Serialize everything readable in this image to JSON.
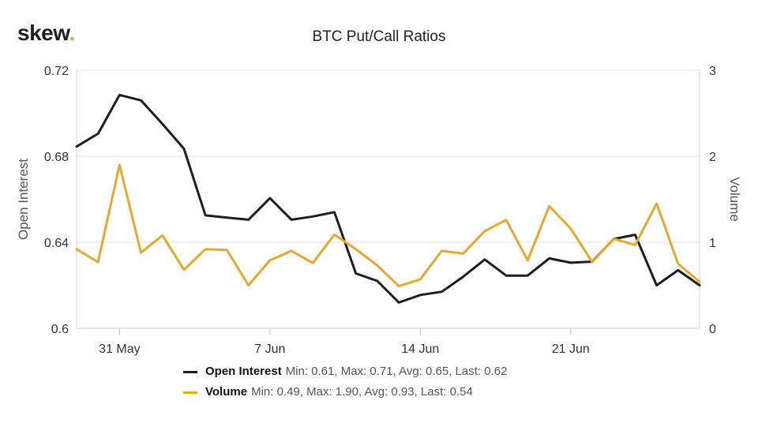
{
  "brand": {
    "name": "skew",
    "dot": "."
  },
  "chart_data": {
    "type": "line",
    "title": "BTC Put/Call Ratios",
    "x_ticks": [
      {
        "label": "31 May",
        "index": 2
      },
      {
        "label": "7 Jun",
        "index": 9
      },
      {
        "label": "14 Jun",
        "index": 16
      },
      {
        "label": "21 Jun",
        "index": 23
      }
    ],
    "y_left": {
      "label": "Open Interest",
      "range": [
        0.6,
        0.72
      ],
      "ticks": [
        "0.6",
        "0.64",
        "0.68",
        "0.72"
      ]
    },
    "y_right": {
      "label": "Volume",
      "range": [
        0,
        3
      ],
      "ticks": [
        "0",
        "1",
        "2",
        "3"
      ]
    },
    "series": [
      {
        "name": "Open Interest",
        "axis": "left",
        "color": "#1e1e1e",
        "stats": "Min: 0.61, Max: 0.71, Avg: 0.65, Last: 0.62",
        "values": [
          0.6845,
          0.6905,
          0.7085,
          0.706,
          0.695,
          0.6835,
          0.6525,
          0.6515,
          0.6505,
          0.6605,
          0.6505,
          0.652,
          0.654,
          0.6255,
          0.622,
          0.612,
          0.6155,
          0.617,
          0.624,
          0.632,
          0.6245,
          0.6245,
          0.6325,
          0.6305,
          0.631,
          0.6415,
          0.6435,
          0.62,
          0.627,
          0.62
        ]
      },
      {
        "name": "Volume",
        "axis": "right",
        "color": "#e6a92b",
        "stats": "Min: 0.49, Max: 1.90, Avg: 0.93, Last: 0.54",
        "values": [
          0.92,
          0.77,
          1.9,
          0.88,
          1.08,
          0.68,
          0.92,
          0.91,
          0.5,
          0.79,
          0.9,
          0.76,
          1.09,
          0.92,
          0.73,
          0.49,
          0.57,
          0.9,
          0.87,
          1.13,
          1.26,
          0.79,
          1.42,
          1.16,
          0.77,
          1.04,
          0.97,
          1.45,
          0.75,
          0.54
        ]
      }
    ]
  }
}
